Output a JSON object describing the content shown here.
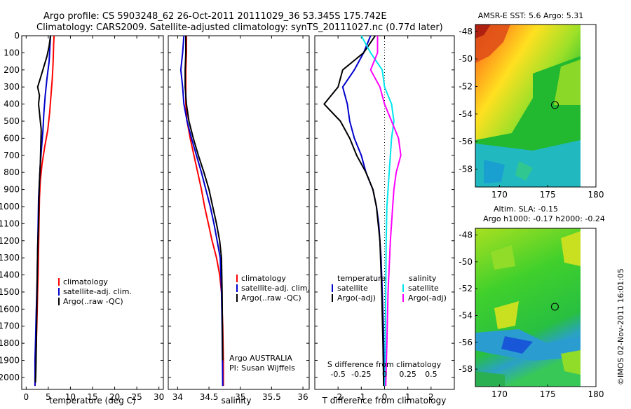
{
  "header": {
    "line1": "Argo profile: CS 5903248_62 26-Oct-2011 20111029_36 53.345S 175.742E",
    "line2": "Climatology: CARS2009. Satellite-adjusted climatology: synTS_20111027.nc (0.77d later)"
  },
  "colors": {
    "climatology": "#ff0000",
    "satellite": "#0000cc",
    "argo": "#000000",
    "sal_satellite": "#00e5ee",
    "sal_argo": "#ff00ff"
  },
  "depth_ticks": [
    "0",
    "100",
    "200",
    "300",
    "400",
    "500",
    "600",
    "700",
    "800",
    "900",
    "1000",
    "1100",
    "1200",
    "1300",
    "1400",
    "1500",
    "1600",
    "1700",
    "1800",
    "1900",
    "2000"
  ],
  "chart_data": [
    {
      "type": "line",
      "id": "temperature",
      "xlabel": "temperature (deg C)",
      "ylabel": "",
      "xlim": [
        -1,
        31
      ],
      "ylim": [
        0,
        2070
      ],
      "xticks": [
        "0",
        "5",
        "10",
        "15",
        "20",
        "25",
        "30"
      ],
      "xtick_values": [
        0,
        5,
        10,
        15,
        20,
        25,
        30
      ],
      "legend": [
        "climatology",
        "satellite-adj. clim.",
        "Argo(..raw -QC)"
      ],
      "series": [
        {
          "name": "climatology",
          "color": "#ff0000",
          "x": [
            6.3,
            6.2,
            6.1,
            5.9,
            5.6,
            5.3,
            4.9,
            4.2,
            3.6,
            3.2,
            3.0,
            2.9,
            2.8,
            2.7,
            2.6,
            2.5,
            2.4,
            2.3,
            2.2,
            2.1,
            2.0
          ],
          "y": [
            0,
            50,
            150,
            250,
            350,
            450,
            550,
            650,
            750,
            850,
            950,
            1100,
            1250,
            1400,
            1500,
            1600,
            1700,
            1800,
            1900,
            2000,
            2050
          ]
        },
        {
          "name": "satellite-adj. clim.",
          "color": "#0000cc",
          "x": [
            5.5,
            5.4,
            5.2,
            4.7,
            4.3,
            4.0,
            3.8,
            3.5,
            3.2,
            3.0,
            2.8,
            2.7,
            2.6,
            2.5,
            2.4,
            2.3,
            2.2,
            2.1,
            2.0,
            2.0
          ],
          "y": [
            0,
            50,
            150,
            250,
            350,
            450,
            550,
            650,
            750,
            850,
            950,
            1100,
            1250,
            1400,
            1500,
            1600,
            1700,
            1800,
            1900,
            2050
          ]
        },
        {
          "name": "Argo(..raw -QC)",
          "color": "#000000",
          "x": [
            5.5,
            5.2,
            4.7,
            4.0,
            3.2,
            2.6,
            3.0,
            2.8,
            3.0,
            3.2,
            3.4,
            3.3,
            3.2,
            3.0,
            2.9,
            2.8,
            2.6,
            2.5,
            2.4,
            2.3,
            2.2,
            2.1
          ],
          "y": [
            0,
            60,
            120,
            180,
            250,
            300,
            350,
            400,
            450,
            500,
            550,
            650,
            750,
            850,
            950,
            1100,
            1250,
            1400,
            1600,
            1800,
            1950,
            2030
          ]
        }
      ]
    },
    {
      "type": "line",
      "id": "salinity",
      "xlabel": "salinity",
      "ylabel": "",
      "xlim": [
        33.85,
        36.1
      ],
      "ylim": [
        0,
        2070
      ],
      "xticks": [
        "34",
        "34.5",
        "35",
        "35.5",
        "36"
      ],
      "xtick_values": [
        34,
        34.5,
        35,
        35.5,
        36
      ],
      "legend": [
        "climatology",
        "satellite-adj. clim.",
        "Argo(..raw -QC)"
      ],
      "annotation": [
        "Argo AUSTRALIA",
        "PI: Susan Wijffels"
      ],
      "series": [
        {
          "name": "climatology",
          "color": "#ff0000",
          "x": [
            34.14,
            34.14,
            34.13,
            34.13,
            34.13,
            34.15,
            34.2,
            34.26,
            34.32,
            34.38,
            34.43,
            34.49,
            34.55,
            34.62,
            34.67,
            34.7,
            34.72,
            34.73,
            34.73
          ],
          "y": [
            0,
            100,
            200,
            300,
            400,
            500,
            600,
            700,
            800,
            900,
            1000,
            1100,
            1200,
            1300,
            1400,
            1500,
            1700,
            1900,
            2050
          ]
        },
        {
          "name": "satellite-adj. clim.",
          "color": "#0000cc",
          "x": [
            34.1,
            34.08,
            34.05,
            34.08,
            34.1,
            34.15,
            34.22,
            34.3,
            34.38,
            34.45,
            34.52,
            34.58,
            34.63,
            34.68,
            34.7,
            34.71,
            34.72
          ],
          "y": [
            0,
            100,
            200,
            300,
            400,
            500,
            600,
            700,
            800,
            900,
            1000,
            1100,
            1200,
            1300,
            1500,
            1700,
            2050
          ]
        },
        {
          "name": "Argo(..raw -QC)",
          "color": "#000000",
          "x": [
            34.13,
            34.13,
            34.12,
            34.12,
            34.14,
            34.18,
            34.25,
            34.33,
            34.42,
            34.5,
            34.56,
            34.62,
            34.67,
            34.7,
            34.71,
            34.72
          ],
          "y": [
            0,
            100,
            200,
            300,
            400,
            500,
            600,
            700,
            800,
            900,
            1000,
            1100,
            1200,
            1300,
            1500,
            1900
          ]
        }
      ]
    },
    {
      "type": "line",
      "id": "difference",
      "xlabel": "T difference from climatology",
      "xlabel_top": "S difference from climatology",
      "xlim": [
        -3,
        3
      ],
      "ylim": [
        0,
        2070
      ],
      "xticks": [
        "-2",
        "-1",
        "0",
        "1",
        "2"
      ],
      "xtick_values": [
        -2,
        -1,
        0,
        1,
        2
      ],
      "top_ticks": [
        "-0.5",
        "-0.25",
        "0",
        "0.25",
        "0.5"
      ],
      "top_tick_values": [
        -2,
        -1,
        0,
        1,
        2
      ],
      "legend_left_title": "temperature",
      "legend_right_title": "salinity",
      "legend_left": [
        "satellite",
        "Argo(-adj)"
      ],
      "legend_right": [
        "satellite",
        "Argo(-adj)"
      ],
      "series": [
        {
          "name": "satellite",
          "color": "#0000cc",
          "x": [
            -0.6,
            -0.9,
            -1.3,
            -1.8,
            -1.6,
            -1.5,
            -1.3,
            -1.0,
            -0.8,
            -0.5,
            -0.35,
            -0.25,
            -0.15,
            -0.1,
            -0.05,
            -0.03,
            -0.02
          ],
          "y": [
            0,
            100,
            200,
            300,
            400,
            500,
            600,
            700,
            800,
            900,
            1000,
            1100,
            1300,
            1500,
            1700,
            1900,
            2050
          ]
        },
        {
          "name": "Argo(-adj)",
          "color": "#000000",
          "x": [
            -0.4,
            -0.9,
            -1.8,
            -2.0,
            -2.6,
            -1.9,
            -1.5,
            -1.2,
            -0.8,
            -0.5,
            -0.35,
            -0.2,
            -0.12,
            -0.07,
            -0.04
          ],
          "y": [
            0,
            100,
            200,
            300,
            400,
            500,
            600,
            700,
            800,
            900,
            1000,
            1200,
            1500,
            1800,
            2050
          ]
        },
        {
          "name": "salinity satellite",
          "color": "#00e5ee",
          "x": [
            -1.0,
            -0.6,
            -0.1,
            0.0,
            0.3,
            0.4,
            0.3,
            0.25,
            0.2,
            0.15,
            0.1,
            0.07,
            0.05,
            0.03,
            0.02
          ],
          "y": [
            0,
            100,
            200,
            300,
            400,
            500,
            600,
            700,
            800,
            900,
            1000,
            1200,
            1500,
            1800,
            2050
          ]
        },
        {
          "name": "salinity Argo(-adj)",
          "color": "#ff00ff",
          "x": [
            -0.3,
            -0.3,
            -0.6,
            -0.2,
            0.0,
            0.3,
            0.6,
            0.7,
            0.5,
            0.4,
            0.35,
            0.25,
            0.15,
            0.1,
            0.05
          ],
          "y": [
            0,
            100,
            200,
            300,
            400,
            500,
            600,
            700,
            800,
            900,
            1000,
            1200,
            1500,
            1800,
            2050
          ]
        }
      ]
    },
    {
      "type": "heatmap",
      "id": "sst-map",
      "title": "AMSR-E SST: 5.6 Argo: 5.31",
      "xticks": [
        "170",
        "175",
        "180"
      ],
      "xtick_values": [
        170,
        175,
        180
      ],
      "yticks": [
        "-48",
        "-50",
        "-52",
        "-54",
        "-56",
        "-58"
      ],
      "ytick_values": [
        -48,
        -50,
        -52,
        -54,
        -56,
        -58
      ],
      "xlim": [
        167.5,
        180
      ],
      "ylim": [
        -59.3,
        -47.5
      ],
      "marker": {
        "lon": 175.742,
        "lat": -53.345
      }
    },
    {
      "type": "heatmap",
      "id": "sla-map",
      "title": "Altim. SLA: -0.15",
      "subtitle": "Argo h1000: -0.17 h2000: -0.24",
      "xticks": [
        "170",
        "175",
        "180"
      ],
      "xtick_values": [
        170,
        175,
        180
      ],
      "yticks": [
        "-48",
        "-50",
        "-52",
        "-54",
        "-56",
        "-58"
      ],
      "ytick_values": [
        -48,
        -50,
        -52,
        -54,
        -56,
        -58
      ],
      "xlim": [
        167.5,
        180
      ],
      "ylim": [
        -59.3,
        -47.5
      ],
      "marker": {
        "lon": 175.742,
        "lat": -53.345
      }
    }
  ],
  "watermark": "©IMOS 02-Nov-2011 16:01:05"
}
